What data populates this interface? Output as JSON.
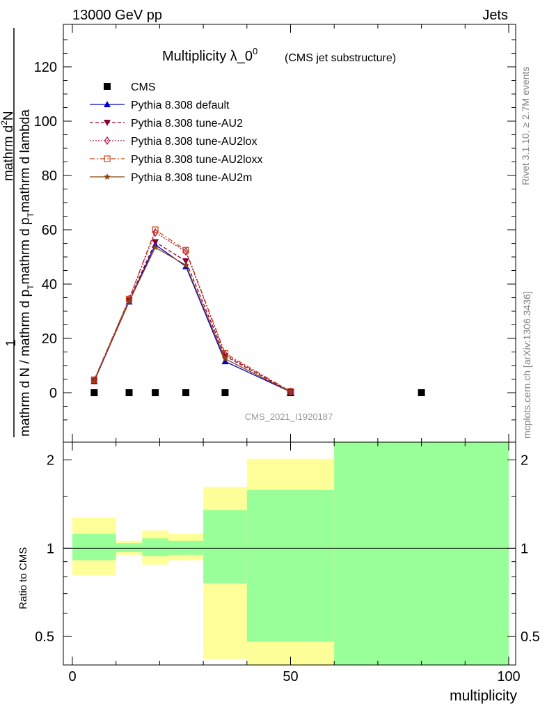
{
  "header": {
    "left": "13000 GeV pp",
    "right": "Jets"
  },
  "side_labels": {
    "rivet": "Rivet 3.1.10, ≥ 2.7M events",
    "mcplots": "mcplots.cern.ch [arXiv:1306.3436]"
  },
  "analysis_id": "CMS_2021_I1920187",
  "chart_data": [
    {
      "type": "line",
      "title": "Multiplicity λ_0",
      "title_sup": "0",
      "subtitle": "(CMS jet substructure)",
      "xlabel": "multiplicity",
      "ylabel_num": "1",
      "ylabel_num_right": "mathrm d",
      "ylabel_num_sup": "2",
      "ylabel_num_n": "N",
      "ylabel_den": "mathrm d N / mathrm d p",
      "ylabel_den_mid": "mathrm d p",
      "ylabel_den_end": "mathrm d lambda",
      "ylabel_sub": "T",
      "xlim": [
        -2,
        101
      ],
      "ylim": [
        -15,
        136
      ],
      "xticks": [
        0,
        50,
        100
      ],
      "yticks": [
        0,
        20,
        40,
        60,
        80,
        100,
        120
      ],
      "legend_position": "top-left",
      "series": [
        {
          "name": "CMS",
          "color": "#000000",
          "marker": "square",
          "line": "none",
          "x": [
            5,
            13,
            19,
            26,
            35,
            50,
            80
          ],
          "y": [
            0,
            0,
            0,
            0,
            0,
            0,
            0
          ]
        },
        {
          "name": "Pythia 8.308 default",
          "color": "#0000cc",
          "marker": "triangle-up",
          "line": "solid",
          "x": [
            5,
            13,
            19,
            26,
            35,
            50
          ],
          "y": [
            4.2,
            33.5,
            54.5,
            46.5,
            11.5,
            0.3
          ]
        },
        {
          "name": "Pythia 8.308 tune-AU2",
          "color": "#880033",
          "marker": "triangle-down",
          "line": "dashed",
          "x": [
            5,
            13,
            19,
            26,
            35,
            50
          ],
          "y": [
            4.5,
            34.0,
            55.5,
            48.5,
            13.5,
            0.4
          ]
        },
        {
          "name": "Pythia 8.308 tune-AU2lox",
          "color": "#aa0044",
          "marker": "diamond-open",
          "line": "dotted",
          "x": [
            5,
            13,
            19,
            26,
            35,
            50
          ],
          "y": [
            4.5,
            34.5,
            59.0,
            52.0,
            14.0,
            0.4
          ]
        },
        {
          "name": "Pythia 8.308 tune-AU2loxx",
          "color": "#cc4411",
          "marker": "square-open",
          "line": "dashdot",
          "x": [
            5,
            13,
            19,
            26,
            35,
            50
          ],
          "y": [
            4.8,
            34.5,
            60.0,
            52.5,
            14.5,
            0.5
          ]
        },
        {
          "name": "Pythia 8.308 tune-AU2m",
          "color": "#884411",
          "marker": "star",
          "line": "solid",
          "x": [
            5,
            13,
            19,
            26,
            35,
            50
          ],
          "y": [
            4.5,
            33.5,
            53.5,
            47.0,
            12.5,
            0.3
          ]
        }
      ]
    },
    {
      "type": "area",
      "ylabel": "Ratio to CMS",
      "xlabel": "multiplicity",
      "ylim": [
        0.4,
        2.3
      ],
      "ylog": true,
      "yticks": [
        0.5,
        1,
        2
      ],
      "ytick_labels": [
        "0.5",
        "1",
        "2"
      ],
      "reference_line": 1,
      "colors": {
        "inner": "#99ff99",
        "outer": "#ffff99"
      },
      "bins": [
        {
          "x0": 0,
          "x1": 10,
          "outer": [
            0.81,
            1.27
          ],
          "inner": [
            0.91,
            1.12
          ]
        },
        {
          "x0": 10,
          "x1": 16,
          "outer": [
            0.95,
            1.06
          ],
          "inner": [
            0.97,
            1.04
          ]
        },
        {
          "x0": 16,
          "x1": 22,
          "outer": [
            0.88,
            1.15
          ],
          "inner": [
            0.94,
            1.08
          ]
        },
        {
          "x0": 22,
          "x1": 30,
          "outer": [
            0.91,
            1.12
          ],
          "inner": [
            0.95,
            1.06
          ]
        },
        {
          "x0": 30,
          "x1": 40,
          "outer": [
            0.42,
            1.62
          ],
          "inner": [
            0.76,
            1.35
          ]
        },
        {
          "x0": 40,
          "x1": 60,
          "outer": [
            0.35,
            2.02
          ],
          "inner": [
            0.48,
            1.58
          ]
        },
        {
          "x0": 60,
          "x1": 100,
          "outer": [
            0.35,
            2.5
          ],
          "inner": [
            0.35,
            2.5
          ]
        }
      ]
    }
  ]
}
